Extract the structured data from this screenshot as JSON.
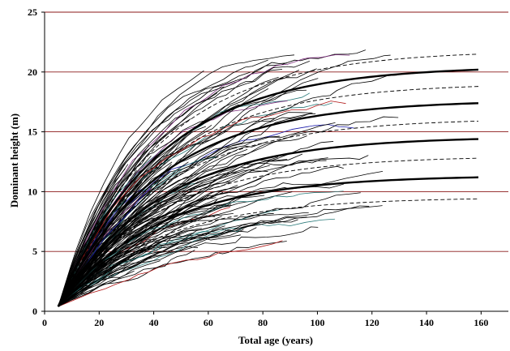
{
  "chart_data": {
    "type": "line",
    "title": "",
    "xlabel": "Total age (years)",
    "ylabel": "Dominant height (m)",
    "xlim": [
      0,
      170
    ],
    "ylim": [
      0,
      25
    ],
    "x_ticks": [
      0,
      20,
      40,
      60,
      80,
      100,
      120,
      140,
      160
    ],
    "y_ticks": [
      0,
      5,
      10,
      15,
      20,
      25
    ],
    "grid": "horizontal",
    "legend": "none",
    "colors": {
      "gridline": "#8b1a1a",
      "axis": "#000000",
      "site_curve": "#000000",
      "bound_curve": "#000000",
      "observed": "#000000",
      "observed_accents": [
        "#1a1aaa",
        "#b01818",
        "#2a7a7a",
        "#7a2a7a"
      ]
    },
    "site_index_curves": [
      {
        "y_at_160": 20.2
      },
      {
        "y_at_160": 17.4
      },
      {
        "y_at_160": 14.4
      },
      {
        "y_at_160": 11.2
      }
    ],
    "bound_curves": [
      {
        "y_at_160": 21.5
      },
      {
        "y_at_160": 18.8
      },
      {
        "y_at_160": 15.9
      },
      {
        "y_at_160": 12.8
      },
      {
        "y_at_160": 9.4
      }
    ],
    "observed_series_count": 160,
    "observed_age_range": [
      5,
      135
    ],
    "observed_start_height": 0.4
  }
}
